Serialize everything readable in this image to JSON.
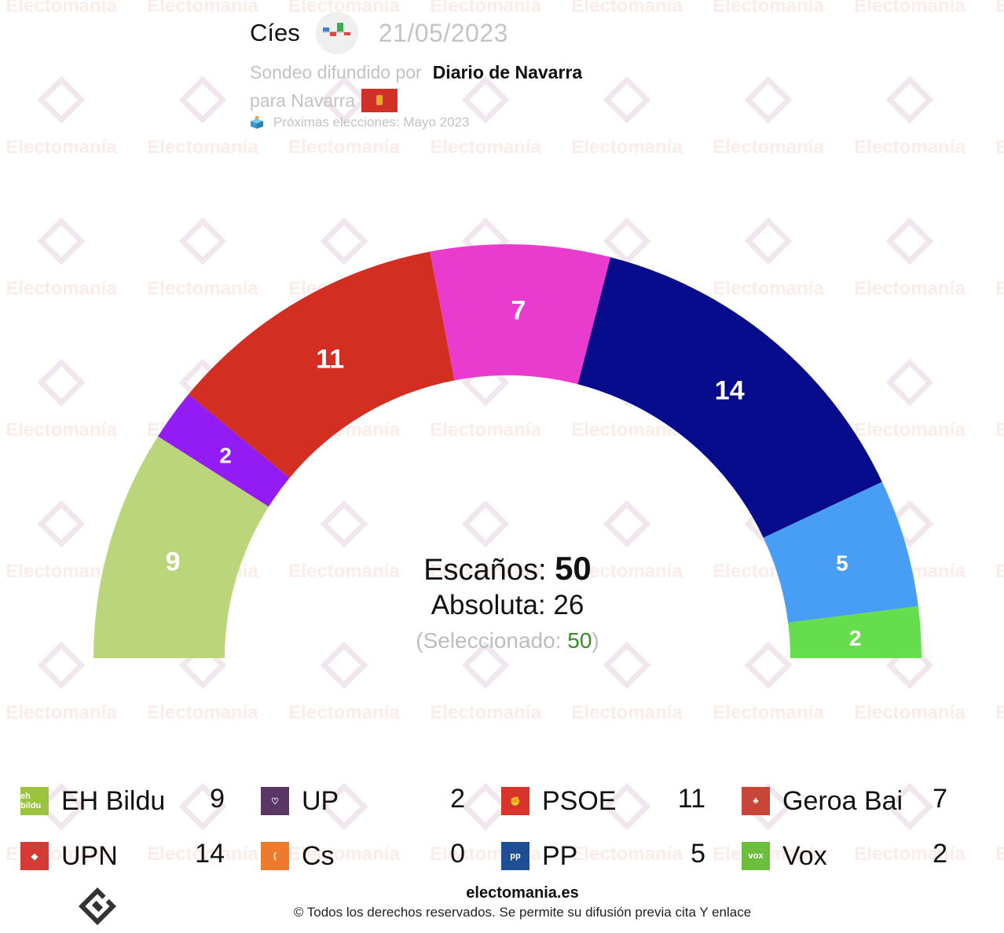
{
  "header": {
    "pollster": "Cíes",
    "date": "21/05/2023",
    "disseminated_by_label": "Sondeo difundido por",
    "media": "Diario de Navarra",
    "region_label": "para Navarra",
    "next_elections": "Próximas elecciones: Mayo 2023"
  },
  "summary": {
    "seats_label": "Escaños:",
    "seats_total": "50",
    "majority_label": "Absoluta: 26",
    "selected_open": "(Seleccionado: ",
    "selected_value": "50",
    "selected_close": ")"
  },
  "watermark": "Electomanía",
  "chart_data": {
    "type": "pie",
    "subtype": "hemicycle",
    "title": "Cíes 21/05/2023 — Navarra",
    "total": 50,
    "majority": 26,
    "categories": [
      "EH Bildu",
      "UP",
      "PSOE",
      "Geroa Bai",
      "UPN",
      "PP",
      "Vox"
    ],
    "values": [
      9,
      2,
      11,
      7,
      14,
      5,
      2
    ],
    "colors": [
      "#BBD57A",
      "#931CF5",
      "#D22E21",
      "#E93CCF",
      "#070C8C",
      "#489DF5",
      "#65DD4D"
    ]
  },
  "legend": [
    {
      "name": "EH Bildu",
      "seats": "9",
      "logo_bg": "#9bc33d",
      "logo_text": "eh bildu"
    },
    {
      "name": "UP",
      "seats": "2",
      "logo_bg": "#5a3764",
      "logo_text": "♡"
    },
    {
      "name": "PSOE",
      "seats": "11",
      "logo_bg": "#d9342b",
      "logo_text": "✊"
    },
    {
      "name": "Geroa Bai",
      "seats": "7",
      "logo_bg": "#c8453a",
      "logo_text": "♣"
    },
    {
      "name": "UPN",
      "seats": "14",
      "logo_bg": "#d33b34",
      "logo_text": "◆"
    },
    {
      "name": "Cs",
      "seats": "0",
      "logo_bg": "#ef7a2e",
      "logo_text": "("
    },
    {
      "name": "PP",
      "seats": "5",
      "logo_bg": "#1e4f95",
      "logo_text": "pp"
    },
    {
      "name": "Vox",
      "seats": "2",
      "logo_bg": "#6cbf3c",
      "logo_text": "vox"
    }
  ],
  "footer": {
    "site": "electomania.es",
    "copyright": "© Todos los derechos reservados. Se permite su difusión previa cita Y enlace"
  }
}
